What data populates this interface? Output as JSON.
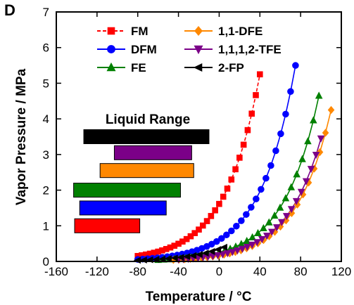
{
  "chart_data": {
    "type": "line",
    "panel_label": "D",
    "xlabel": "Temperature / °C",
    "ylabel": "Vapor Pressure / MPa",
    "xlim": [
      -160,
      120
    ],
    "ylim": [
      0,
      7
    ],
    "xticks": [
      -160,
      -120,
      -80,
      -40,
      0,
      40,
      80,
      120
    ],
    "yticks": [
      0,
      1,
      2,
      3,
      4,
      5,
      6,
      7
    ],
    "legend_placement": "top",
    "series": [
      {
        "name": "FM",
        "color": "#ff0000",
        "marker": "square",
        "dashed": true,
        "tc": 40,
        "pc": 5.25,
        "tstart": -80,
        "count": 31
      },
      {
        "name": "DFM",
        "color": "#0000ff",
        "marker": "circle",
        "dashed": false,
        "tc": 75,
        "pc": 5.5,
        "tstart": -80,
        "count": 33
      },
      {
        "name": "FE",
        "color": "#008000",
        "marker": "triangle-up",
        "dashed": false,
        "tc": 98,
        "pc": 4.65,
        "tstart": -60,
        "count": 30
      },
      {
        "name": "1,1-DFE",
        "color": "#ff8800",
        "marker": "diamond",
        "dashed": false,
        "tc": 110,
        "pc": 4.25,
        "tstart": -45,
        "count": 29
      },
      {
        "name": "1,1,1,2-TFE",
        "color": "#7b0088",
        "marker": "triangle-down",
        "dashed": false,
        "tc": 100,
        "pc": 3.45,
        "tstart": -40,
        "count": 30
      },
      {
        "name": "2-FP",
        "color": "#000000",
        "marker": "triangle-left",
        "dashed": false,
        "tc": 5,
        "pc": 0.4,
        "tstart": -80,
        "count": 15
      }
    ],
    "liquid_range": {
      "title": "Liquid Range",
      "bars": [
        {
          "series": "FM",
          "color": "#ff0000",
          "from": -142,
          "to": -78
        },
        {
          "series": "DFM",
          "color": "#0000ff",
          "from": -137,
          "to": -52
        },
        {
          "series": "FE",
          "color": "#008000",
          "from": -143,
          "to": -38
        },
        {
          "series": "1,1-DFE",
          "color": "#ff8800",
          "from": -117,
          "to": -25
        },
        {
          "series": "1,1,1,2-TFE",
          "color": "#7b0088",
          "from": -103,
          "to": -27
        },
        {
          "series": "2-FP",
          "color": "#000000",
          "from": -133,
          "to": -10
        }
      ]
    }
  }
}
